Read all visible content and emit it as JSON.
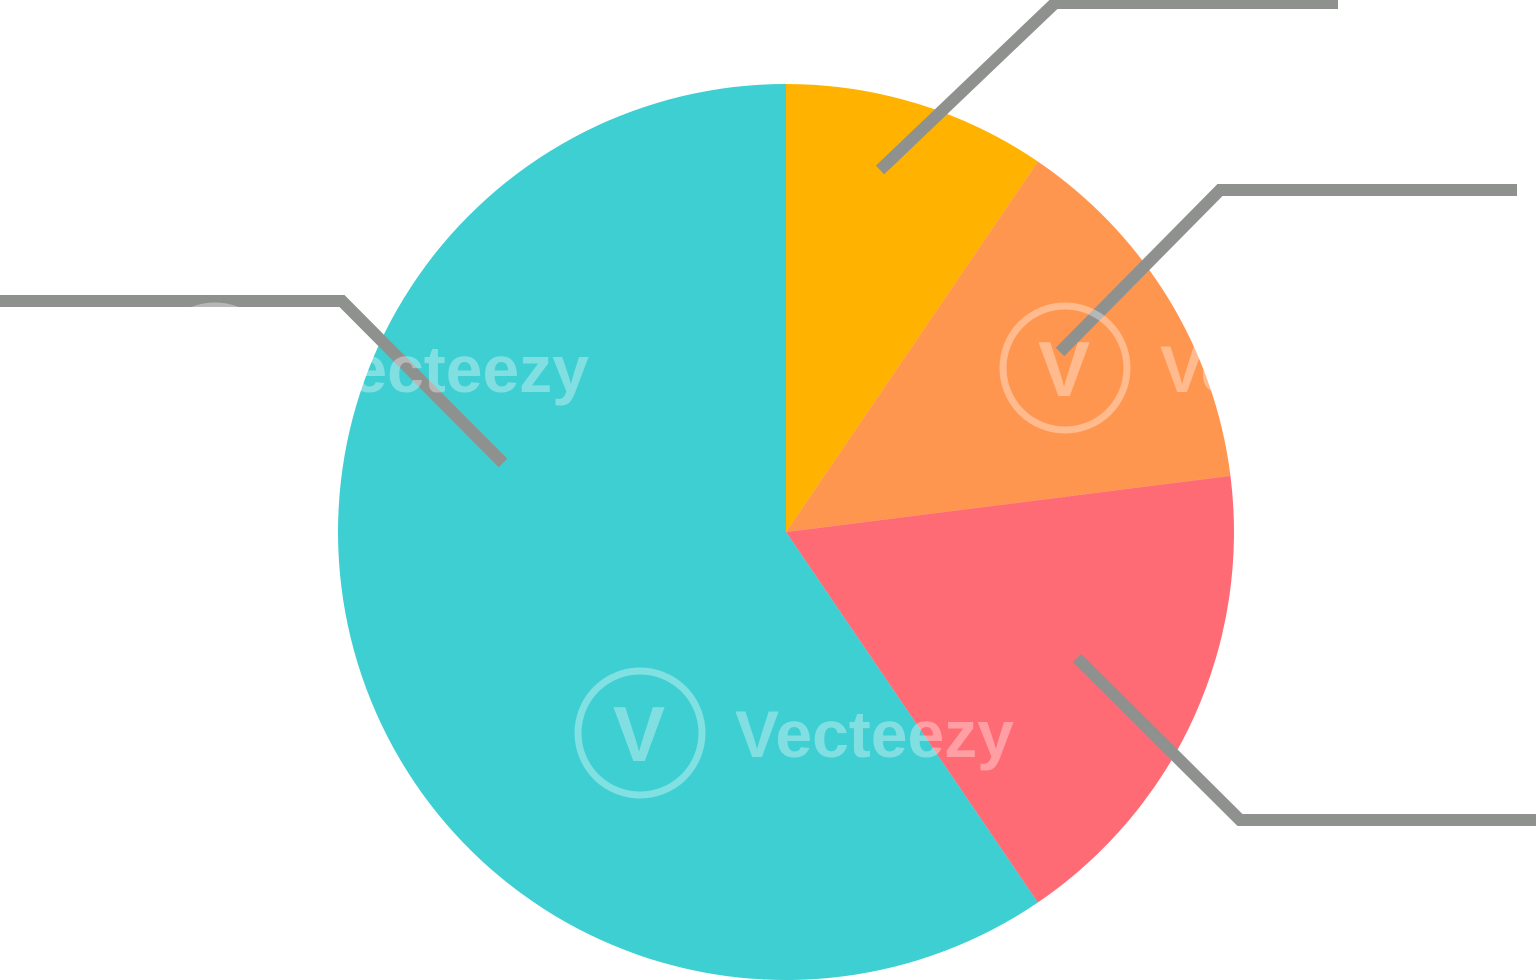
{
  "chart_data": {
    "type": "pie",
    "start": "top",
    "direction": "clockwise",
    "title": "",
    "legend": "none",
    "slices": [
      {
        "value": 9.5,
        "color": "#FFB300"
      },
      {
        "value": 13.5,
        "color": "#FF9650"
      },
      {
        "value": 17.5,
        "color": "#FF6B74"
      },
      {
        "value": 59.5,
        "color": "#3ECFD3"
      }
    ],
    "leader_line_color": "#8F918F"
  },
  "watermark": {
    "text": "Vecteezy",
    "logo_glyph": "V"
  }
}
